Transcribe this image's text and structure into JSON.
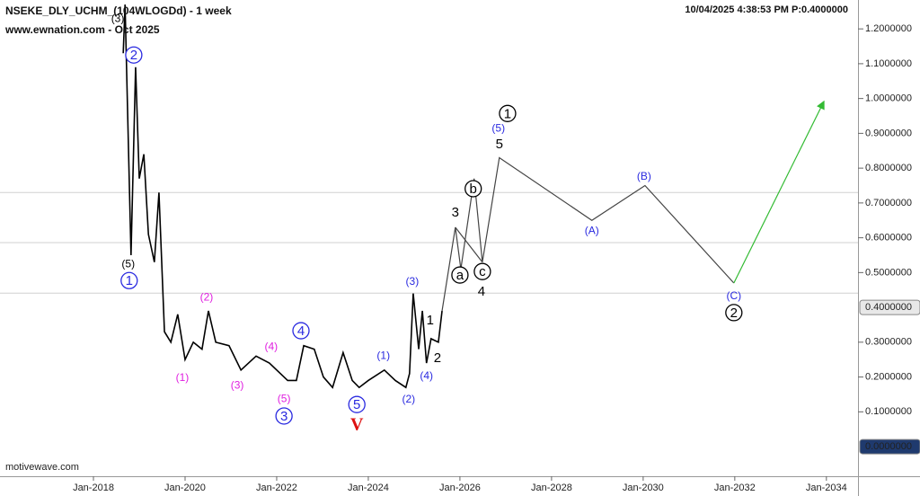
{
  "chart_data": {
    "type": "line",
    "title": "NSEKE_DLY_UCHM_(104WLOGDd) - 1 week",
    "subtitle": "www.ewnation.com  - Oct 2025",
    "timestamp": "10/04/2025 4:38:53 PM  P:0.4000000",
    "footer": "motivewave.com",
    "xlim": [
      2015.96,
      2034.69
    ],
    "ylim": [
      -0.085,
      1.283
    ],
    "xticks": [
      {
        "value": 2018,
        "label": "Jan-2018"
      },
      {
        "value": 2020,
        "label": "Jan-2020"
      },
      {
        "value": 2022,
        "label": "Jan-2022"
      },
      {
        "value": 2024,
        "label": "Jan-2024"
      },
      {
        "value": 2026,
        "label": "Jan-2026"
      },
      {
        "value": 2028,
        "label": "Jan-2028"
      },
      {
        "value": 2030,
        "label": "Jan-2030"
      },
      {
        "value": 2032,
        "label": "Jan-2032"
      },
      {
        "value": 2034,
        "label": "Jan-2034"
      }
    ],
    "yticks": [
      {
        "value": 0.1,
        "label": "0.1000000"
      },
      {
        "value": 0.2,
        "label": "0.2000000"
      },
      {
        "value": 0.3,
        "label": "0.3000000"
      },
      {
        "value": 0.5,
        "label": "0.5000000"
      },
      {
        "value": 0.6,
        "label": "0.6000000"
      },
      {
        "value": 0.7,
        "label": "0.7000000"
      },
      {
        "value": 0.8,
        "label": "0.8000000"
      },
      {
        "value": 0.9,
        "label": "0.9000000"
      },
      {
        "value": 1.0,
        "label": "1.0000000"
      },
      {
        "value": 1.1,
        "label": "1.1000000"
      },
      {
        "value": 1.2,
        "label": "1.2000000"
      }
    ],
    "price_markers": [
      {
        "value": 0.4,
        "label": "0.4000000",
        "color": "#e8e8e8",
        "text_color": "#111"
      },
      {
        "value": 0,
        "label": "0.0000000",
        "color": "#1f3a6e",
        "text_color": "#fff"
      }
    ],
    "hlines": [
      0.73,
      0.586,
      0.441
    ],
    "series": [
      {
        "color": "#000000",
        "x": [
          2018.65,
          2018.69,
          2018.82,
          2018.92,
          2019.0,
          2019.1,
          2019.2,
          2019.33,
          2019.43,
          2019.55,
          2019.69,
          2019.84,
          2020.0,
          2020.18,
          2020.37,
          2020.51,
          2020.67,
          2020.96,
          2021.22,
          2021.55,
          2021.84,
          2022.24,
          2022.43,
          2022.59,
          2022.82,
          2023.02,
          2023.22,
          2023.45,
          2023.65,
          2023.8,
          2024.0,
          2024.35,
          2024.59,
          2024.82,
          2024.9,
          2024.98,
          2025.1,
          2025.18,
          2025.27,
          2025.37,
          2025.53,
          2025.61
        ],
        "values": [
          1.13,
          1.27,
          0.55,
          1.09,
          0.77,
          0.84,
          0.61,
          0.53,
          0.73,
          0.33,
          0.3,
          0.38,
          0.25,
          0.3,
          0.28,
          0.39,
          0.3,
          0.29,
          0.22,
          0.26,
          0.24,
          0.19,
          0.19,
          0.29,
          0.28,
          0.2,
          0.17,
          0.27,
          0.19,
          0.17,
          0.19,
          0.22,
          0.19,
          0.17,
          0.21,
          0.44,
          0.28,
          0.39,
          0.24,
          0.31,
          0.3,
          0.39
        ]
      },
      {
        "color": "#444444",
        "x": [
          2025.61,
          2025.9,
          2026.02,
          2026.31,
          2026.49,
          2026.86,
          2028.88,
          2030.04,
          2031.98
        ],
        "values": [
          0.39,
          0.63,
          0.51,
          0.77,
          0.53,
          0.83,
          0.65,
          0.75,
          0.47
        ]
      },
      {
        "color": "#444444",
        "x": [
          2025.9,
          2026.49
        ],
        "values": [
          0.63,
          0.53
        ]
      },
      {
        "color": "#33bb33",
        "arrow": true,
        "x": [
          2031.98,
          2033.94
        ],
        "values": [
          0.47,
          0.99
        ]
      }
    ],
    "annotations": [
      {
        "text": "(3)",
        "x": 2018.53,
        "y": 1.23,
        "color": "#000000",
        "circled": false
      },
      {
        "text": "2",
        "x": 2018.88,
        "y": 1.125,
        "color": "#2a2ae0",
        "circled": true
      },
      {
        "text": "(5)",
        "x": 2018.76,
        "y": 0.526,
        "color": "#000000",
        "circled": false
      },
      {
        "text": "1",
        "x": 2018.78,
        "y": 0.477,
        "color": "#2a2ae0",
        "circled": true
      },
      {
        "text": "(2)",
        "x": 2020.47,
        "y": 0.431,
        "color": "#e020e0",
        "circled": false
      },
      {
        "text": "(1)",
        "x": 2019.94,
        "y": 0.199,
        "color": "#e020e0",
        "circled": false
      },
      {
        "text": "(3)",
        "x": 2021.14,
        "y": 0.178,
        "color": "#e020e0",
        "circled": false
      },
      {
        "text": "(4)",
        "x": 2021.88,
        "y": 0.289,
        "color": "#e020e0",
        "circled": false
      },
      {
        "text": "(5)",
        "x": 2022.16,
        "y": 0.139,
        "color": "#e020e0",
        "circled": false
      },
      {
        "text": "3",
        "x": 2022.16,
        "y": 0.088,
        "color": "#2a2ae0",
        "circled": true
      },
      {
        "text": "4",
        "x": 2022.53,
        "y": 0.333,
        "color": "#2a2ae0",
        "circled": true
      },
      {
        "text": "(1)",
        "x": 2024.33,
        "y": 0.263,
        "color": "#2a2ae0",
        "circled": false
      },
      {
        "text": "5",
        "x": 2023.75,
        "y": 0.121,
        "color": "#2a2ae0",
        "circled": true
      },
      {
        "text": "V",
        "x": 2023.75,
        "y": 0.062,
        "color": "#dd1111",
        "circled": false
      },
      {
        "text": "(2)",
        "x": 2024.88,
        "y": 0.137,
        "color": "#2a2ae0",
        "circled": false
      },
      {
        "text": "(3)",
        "x": 2024.96,
        "y": 0.475,
        "color": "#2a2ae0",
        "circled": false
      },
      {
        "text": "(4)",
        "x": 2025.27,
        "y": 0.204,
        "color": "#2a2ae0",
        "circled": false
      },
      {
        "text": "1",
        "x": 2025.35,
        "y": 0.364,
        "color": "#000000",
        "circled": false
      },
      {
        "text": "2",
        "x": 2025.51,
        "y": 0.255,
        "color": "#000000",
        "circled": false
      },
      {
        "text": "3",
        "x": 2025.9,
        "y": 0.674,
        "color": "#000000",
        "circled": false
      },
      {
        "text": "a",
        "x": 2026.0,
        "y": 0.493,
        "color": "#000000",
        "circled": true
      },
      {
        "text": "b",
        "x": 2026.29,
        "y": 0.741,
        "color": "#000000",
        "circled": true
      },
      {
        "text": "c",
        "x": 2026.49,
        "y": 0.503,
        "color": "#000000",
        "circled": true
      },
      {
        "text": "4",
        "x": 2026.47,
        "y": 0.446,
        "color": "#000000",
        "circled": false
      },
      {
        "text": "5",
        "x": 2026.86,
        "y": 0.87,
        "color": "#000000",
        "circled": false
      },
      {
        "text": "(5)",
        "x": 2026.84,
        "y": 0.916,
        "color": "#2a2ae0",
        "circled": false
      },
      {
        "text": "1",
        "x": 2027.04,
        "y": 0.957,
        "color": "#000000",
        "circled": true
      },
      {
        "text": "(A)",
        "x": 2028.88,
        "y": 0.622,
        "color": "#2a2ae0",
        "circled": false
      },
      {
        "text": "(B)",
        "x": 2030.02,
        "y": 0.777,
        "color": "#2a2ae0",
        "circled": false
      },
      {
        "text": "(C)",
        "x": 2031.98,
        "y": 0.434,
        "color": "#2a2ae0",
        "circled": false
      },
      {
        "text": "2",
        "x": 2031.98,
        "y": 0.385,
        "color": "#000000",
        "circled": true
      }
    ]
  }
}
